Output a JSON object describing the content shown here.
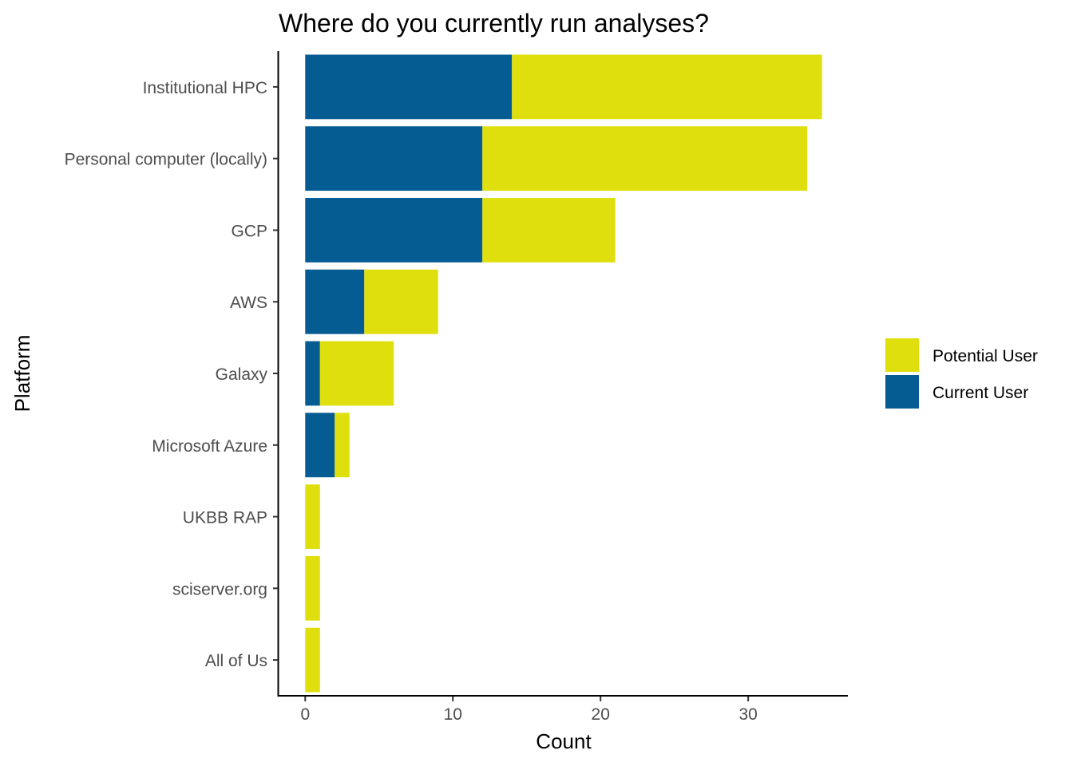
{
  "chart_data": {
    "type": "bar",
    "orientation": "horizontal",
    "stacked": true,
    "title": "Where do you currently run analyses?",
    "xlabel": "Count",
    "ylabel": "Platform",
    "categories": [
      "Institutional HPC",
      "Personal computer (locally)",
      "GCP",
      "AWS",
      "Galaxy",
      "Microsoft Azure",
      "UKBB RAP",
      "sciserver.org",
      "All of Us"
    ],
    "series": [
      {
        "name": "Current User",
        "color": "#045c93",
        "values": [
          14,
          12,
          12,
          4,
          1,
          2,
          0,
          0,
          0
        ]
      },
      {
        "name": "Potential User",
        "color": "#dfdf0d",
        "values": [
          21,
          22,
          9,
          5,
          5,
          1,
          1,
          1,
          1
        ]
      }
    ],
    "xlim": [
      -1.8,
      36.75
    ],
    "xticks": [
      0,
      10,
      20,
      30
    ],
    "grid": false,
    "legend": {
      "position": "right",
      "order": [
        "Potential User",
        "Current User"
      ]
    }
  }
}
